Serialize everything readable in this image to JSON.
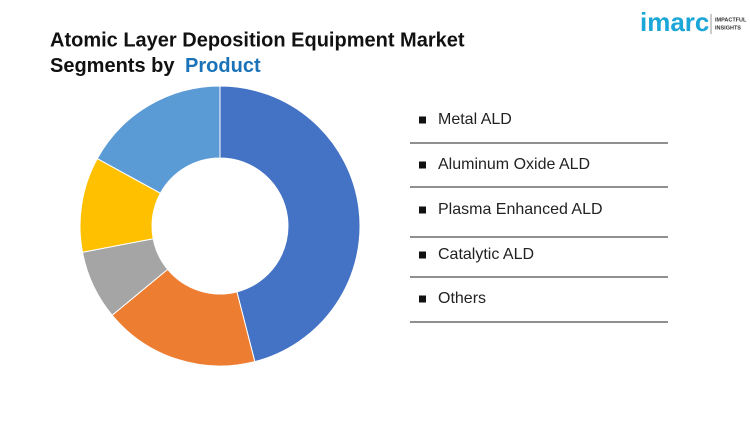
{
  "chart_data": {
    "type": "donut",
    "title": "Atomic Layer Deposition Equipment Market",
    "subtitle_prefix": "Segments by",
    "subtitle_highlight": "Product",
    "brand": "imarc",
    "brand_tagline": [
      "IMPACTFUL",
      "INSIGHTS"
    ],
    "categories": [
      "Metal ALD",
      "Aluminum Oxide ALD",
      "Plasma Enhanced ALD",
      "Catalytic ALD",
      "Others"
    ],
    "values": [
      46,
      18,
      8,
      11,
      17
    ],
    "colors": [
      "#4472c4",
      "#ed7d31",
      "#a5a5a5",
      "#ffc000",
      "#5b9bd5"
    ]
  }
}
